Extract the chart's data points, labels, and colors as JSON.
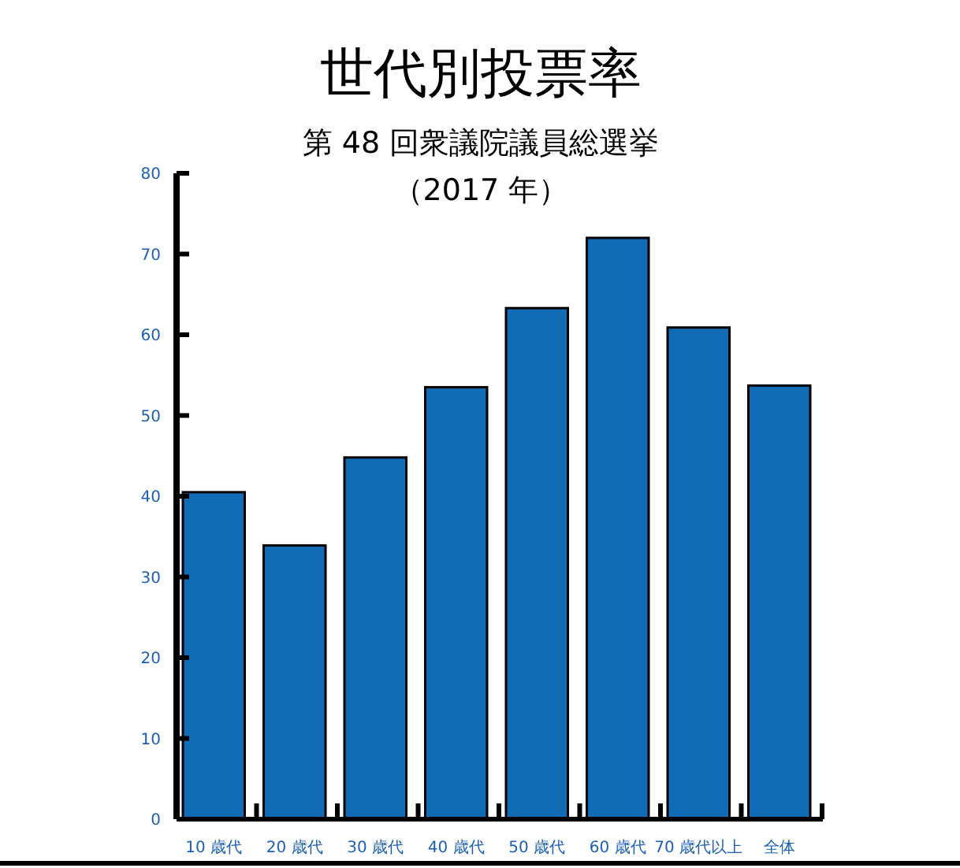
{
  "chart_data": {
    "type": "bar",
    "title": "世代別投票率",
    "subtitle": "第 48 回衆議院議員総選挙",
    "annotations": [
      "（2017 年）"
    ],
    "categories": [
      "10 歳代",
      "20 歳代",
      "30 歳代",
      "40 歳代",
      "50 歳代",
      "60 歳代",
      "70 歳代以上",
      "全体"
    ],
    "values": [
      40.5,
      33.9,
      44.8,
      53.5,
      63.3,
      72.0,
      60.9,
      53.7
    ],
    "color": "#116cb5",
    "ylim": [
      0,
      80
    ],
    "yticks": [
      0,
      10,
      20,
      30,
      40,
      50,
      60,
      70,
      80
    ],
    "grid": false
  }
}
